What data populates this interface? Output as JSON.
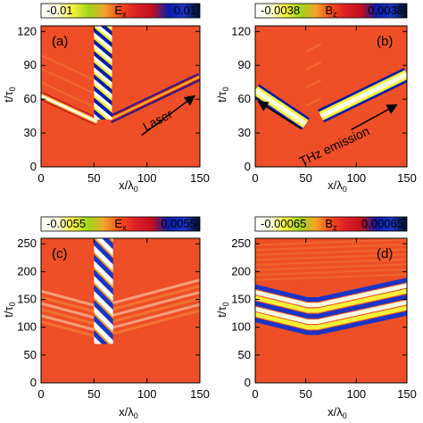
{
  "colormap": [
    "#ffffff",
    "#fffde0",
    "#f7f23a",
    "#9ed51b",
    "#f3a32a",
    "#f24a19",
    "#dd1f24",
    "#bf1020",
    "#0b1ca8",
    "#1a34c6",
    "#000d1e"
  ],
  "field_color": "#ee4f26",
  "chart_data": [
    {
      "type": "heatmap",
      "panel_label": "(a)",
      "colorbar": {
        "label": "E",
        "subscript": "x",
        "min_label": "-0.01",
        "max_label": "0.01",
        "min": -0.01,
        "max": 0.01
      },
      "xlabel": "x/λ",
      "xlabel_sub": "0",
      "ylabel": "t/τ",
      "ylabel_sub": "0",
      "xlim": [
        0,
        150
      ],
      "ylim": [
        0,
        125
      ],
      "xticks": [
        "0",
        "50",
        "100",
        "150"
      ],
      "xtick_values": [
        0,
        50,
        100,
        150
      ],
      "yticks": [
        "0",
        "30",
        "60",
        "90",
        "120"
      ],
      "ytick_values": [
        0,
        30,
        60,
        90,
        120
      ],
      "annotation": {
        "text": "Laser",
        "x": 112,
        "y": 38,
        "arrow_from": [
          95,
          36
        ],
        "arrow_to": [
          145,
          63
        ]
      },
      "features": {
        "left_band": [
          [
            0,
            63
          ],
          [
            53,
            40
          ]
        ],
        "right_band": [
          [
            65,
            42
          ],
          [
            150,
            80
          ]
        ],
        "slab": [
          50,
          67
        ]
      }
    },
    {
      "type": "heatmap",
      "panel_label": "(b)",
      "colorbar": {
        "label": "B",
        "subscript": "z",
        "min_label": "-0.0038",
        "max_label": "0.0038",
        "min": -0.0038,
        "max": 0.0038
      },
      "xlabel": "x/λ",
      "xlabel_sub": "0",
      "ylabel": "t/τ",
      "ylabel_sub": "0",
      "xlim": [
        0,
        150
      ],
      "ylim": [
        0,
        125
      ],
      "xticks": [
        "0",
        "50",
        "100",
        "150"
      ],
      "xtick_values": [
        0,
        50,
        100,
        150
      ],
      "yticks": [
        "0",
        "30",
        "60",
        "90",
        "120"
      ],
      "ytick_values": [
        0,
        30,
        60,
        90,
        120
      ],
      "annotation": {
        "text": "THz emission",
        "x": 80,
        "y": 15,
        "arrow_left_from": [
          45,
          34
        ],
        "arrow_left_to": [
          3,
          58
        ],
        "arrow_right_from": [
          95,
          33
        ],
        "arrow_right_to": [
          140,
          55
        ]
      },
      "features": {
        "left_band": [
          [
            0,
            68
          ],
          [
            50,
            38
          ]
        ],
        "right_band": [
          [
            65,
            45
          ],
          [
            150,
            82
          ]
        ]
      }
    },
    {
      "type": "heatmap",
      "panel_label": "(c)",
      "colorbar": {
        "label": "E",
        "subscript": "x",
        "min_label": "-0.0055",
        "max_label": "0.0055",
        "min": -0.0055,
        "max": 0.0055
      },
      "xlabel": "x/λ",
      "xlabel_sub": "0",
      "ylabel": "t/τ",
      "ylabel_sub": "0",
      "xlim": [
        0,
        150
      ],
      "ylim": [
        0,
        260
      ],
      "xticks": [
        "0",
        "50",
        "100",
        "150"
      ],
      "xtick_values": [
        0,
        50,
        100,
        150
      ],
      "yticks": [
        "0",
        "50",
        "100",
        "150",
        "200",
        "250"
      ],
      "ytick_values": [
        0,
        50,
        100,
        150,
        200,
        250
      ],
      "features": {
        "slab": [
          50,
          68
        ],
        "stripes": [
          92,
          145
        ]
      }
    },
    {
      "type": "heatmap",
      "panel_label": "(d)",
      "colorbar": {
        "label": "B",
        "subscript": "z",
        "min_label": "-0.00065",
        "max_label": "0.00065",
        "min": -0.00065,
        "max": 0.00065
      },
      "xlabel": "x/λ",
      "xlabel_sub": "0",
      "ylabel": "t/τ",
      "ylabel_sub": "0",
      "xlim": [
        0,
        150
      ],
      "ylim": [
        0,
        260
      ],
      "xticks": [
        "0",
        "50",
        "100",
        "150"
      ],
      "xtick_values": [
        0,
        50,
        100,
        150
      ],
      "yticks": [
        "0",
        "50",
        "100",
        "150",
        "200",
        "250"
      ],
      "ytick_values": [
        0,
        50,
        100,
        150,
        200,
        250
      ],
      "features": {
        "stripes": [
          95,
          175
        ]
      }
    }
  ]
}
